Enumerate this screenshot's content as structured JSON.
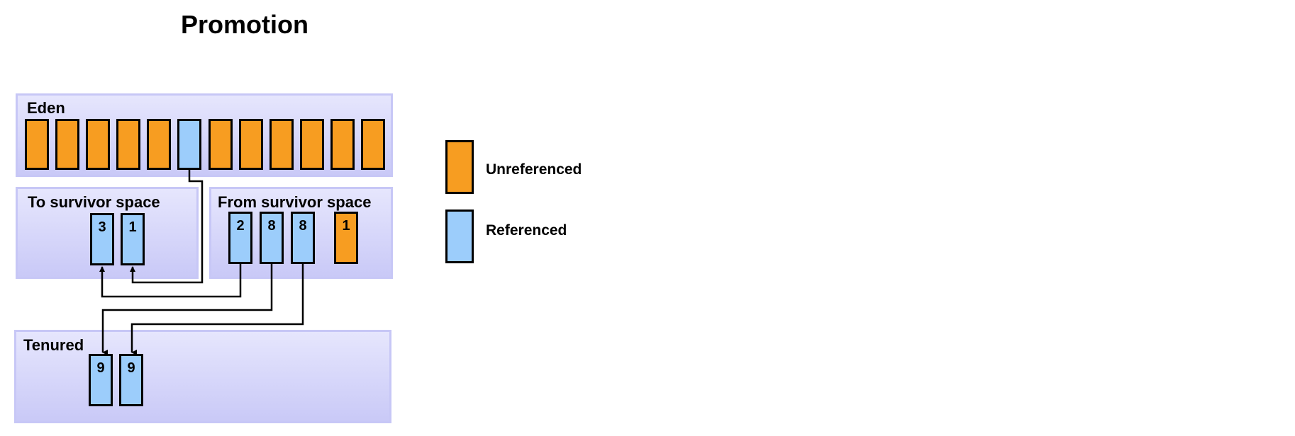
{
  "title": "Promotion",
  "regions": {
    "eden": {
      "label": "Eden"
    },
    "to_survivor": {
      "label": "To survivor  space"
    },
    "from_survivor": {
      "label": "From survivor  space"
    },
    "tenured": {
      "label": "Tenured"
    }
  },
  "eden_objects": [
    "unreferenced",
    "unreferenced",
    "unreferenced",
    "unreferenced",
    "unreferenced",
    "referenced",
    "unreferenced",
    "unreferenced",
    "unreferenced",
    "unreferenced",
    "unreferenced",
    "unreferenced"
  ],
  "to_survivor_objects": [
    {
      "age": "3",
      "status": "referenced"
    },
    {
      "age": "1",
      "status": "referenced"
    }
  ],
  "from_survivor_objects": [
    {
      "age": "2",
      "status": "referenced"
    },
    {
      "age": "8",
      "status": "referenced"
    },
    {
      "age": "8",
      "status": "referenced"
    },
    {
      "age": "1",
      "status": "unreferenced"
    }
  ],
  "tenured_objects": [
    {
      "age": "9",
      "status": "referenced"
    },
    {
      "age": "9",
      "status": "referenced"
    }
  ],
  "legend": {
    "unreferenced": "Unreferenced",
    "referenced": "Referenced"
  },
  "colors": {
    "unreferenced": "#f79d21",
    "referenced": "#9ccdfb",
    "region_border": "#c7c7f6"
  }
}
